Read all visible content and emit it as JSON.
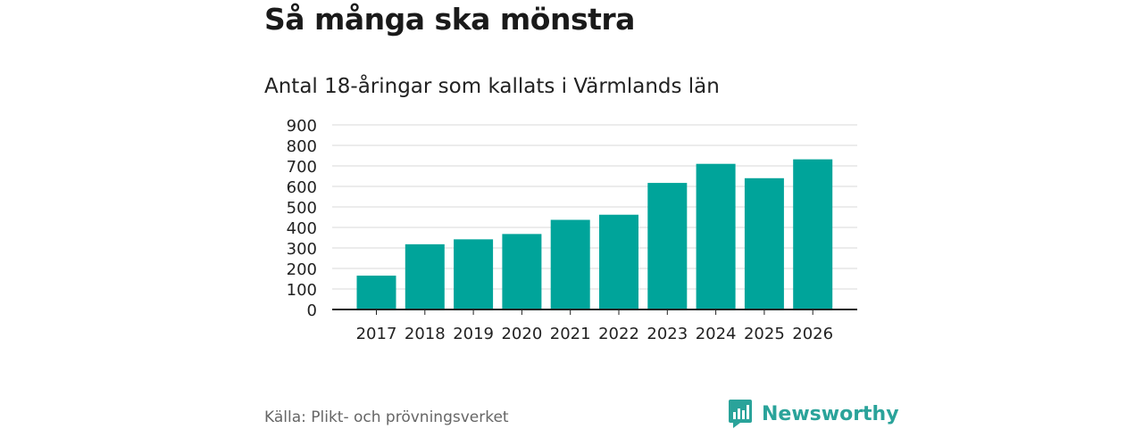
{
  "header": {
    "title": "Så många ska mönstra",
    "subtitle": "Antal 18-åringar som kallats i Värmlands län"
  },
  "footer": {
    "source": "Källa: Plikt- och prövningsverket",
    "brand": "Newsworthy",
    "brand_icon": "newsworthy-logo-icon"
  },
  "colors": {
    "bar": "#00a49a",
    "grid": "#d9d9d9",
    "axis": "#222222",
    "brand": "#2aa39a"
  },
  "chart_data": {
    "type": "bar",
    "title": "Så många ska mönstra",
    "subtitle": "Antal 18-åringar som kallats i Värmlands län",
    "categories": [
      "2017",
      "2018",
      "2019",
      "2020",
      "2021",
      "2022",
      "2023",
      "2024",
      "2025",
      "2026"
    ],
    "values": [
      165,
      318,
      342,
      368,
      437,
      462,
      617,
      710,
      640,
      732
    ],
    "yticks": [
      0,
      100,
      200,
      300,
      400,
      500,
      600,
      700,
      800,
      900
    ],
    "ylim": [
      0,
      900
    ],
    "xlabel": "",
    "ylabel": "",
    "grid": true
  }
}
